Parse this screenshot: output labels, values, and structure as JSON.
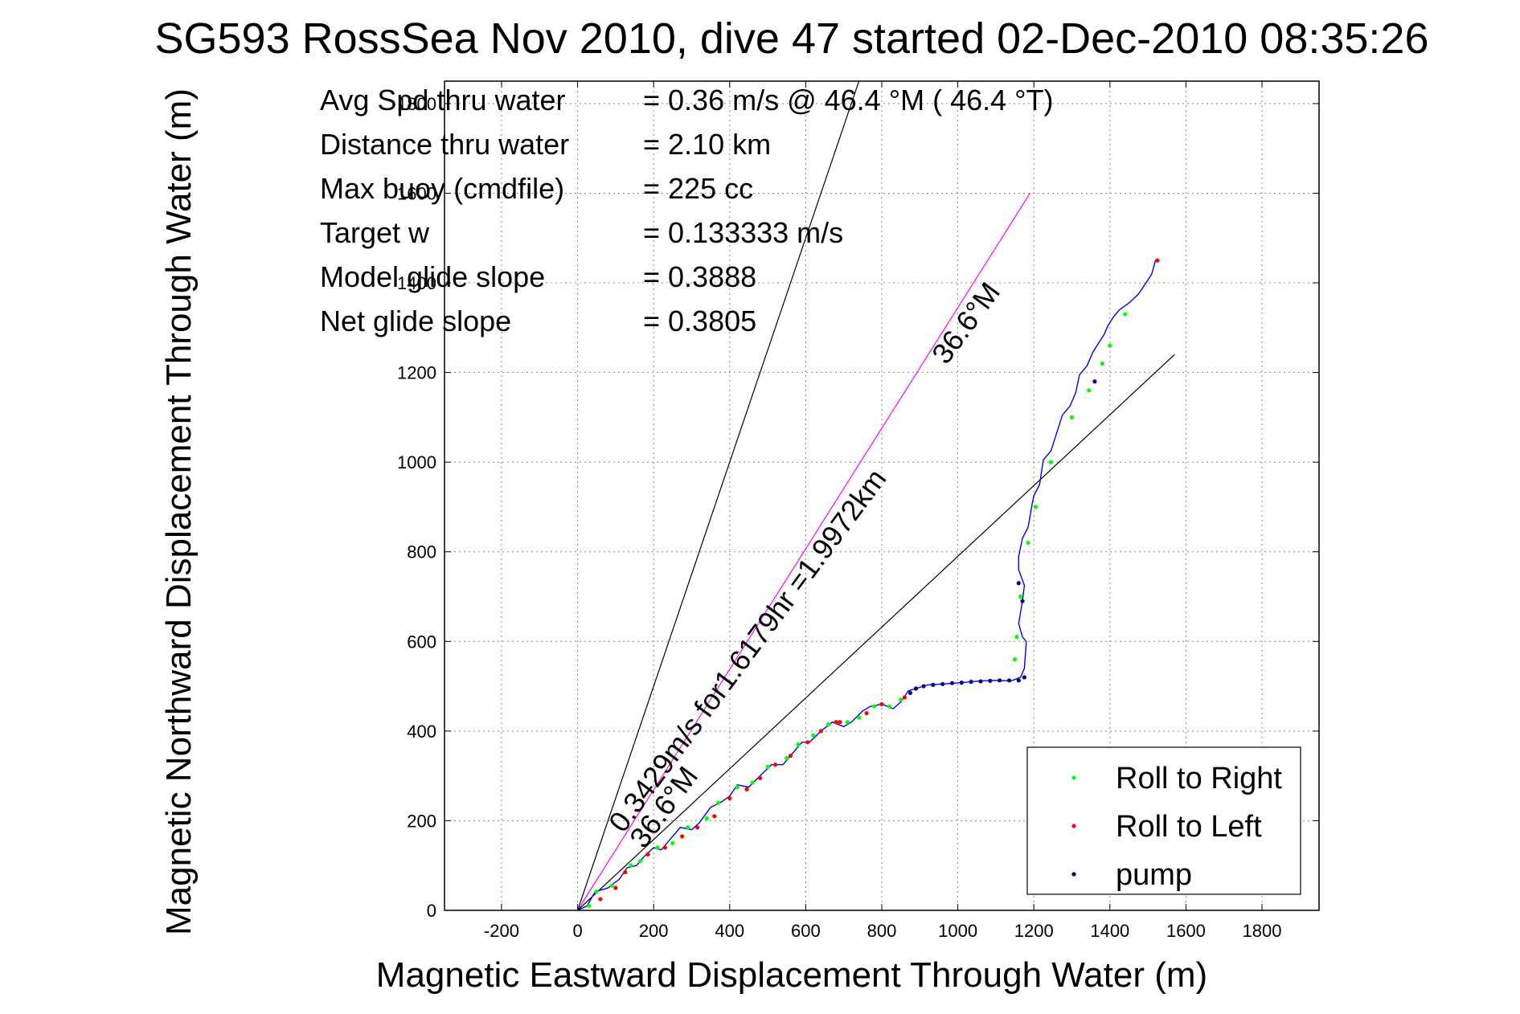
{
  "chart_data": {
    "type": "line",
    "title": "SG593 RossSea Nov 2010, dive 47 started 02-Dec-2010 08:35:26",
    "xlabel": "Magnetic Eastward Displacement Through Water (m)",
    "ylabel": "Magnetic Northward Displacement Through Water (m)",
    "xlim": [
      -350,
      1950
    ],
    "ylim": [
      0,
      1850
    ],
    "xticks": [
      -200,
      0,
      200,
      400,
      600,
      800,
      1000,
      1200,
      1400,
      1600,
      1800
    ],
    "yticks": [
      0,
      200,
      400,
      600,
      800,
      1000,
      1200,
      1400,
      1600,
      1800
    ],
    "grid": true,
    "stats": [
      {
        "label": "Avg Spd thru water",
        "value": "=  0.36 m/s @  46.4 °M ( 46.4 °T)"
      },
      {
        "label": "Distance thru water",
        "value": "=  2.10 km"
      },
      {
        "label": "Max buoy (cmdfile)",
        "value": "= 225 cc"
      },
      {
        "label": "Target w",
        "value": "= 0.133333 m/s"
      },
      {
        "label": "Model glide slope",
        "value": "= 0.3888"
      },
      {
        "label": "Net glide slope",
        "value": "= 0.3805"
      }
    ],
    "reference_lines": [
      {
        "name": "steep-line",
        "x": [
          0,
          740
        ],
        "y": [
          0,
          1850
        ],
        "color": "#000000"
      },
      {
        "name": "magenta-line",
        "x": [
          0,
          1190
        ],
        "y": [
          0,
          1600
        ],
        "color": "#ff00ff"
      },
      {
        "name": "shallow-line",
        "x": [
          0,
          1570
        ],
        "y": [
          0,
          1240
        ],
        "color": "#000000"
      }
    ],
    "annotations": [
      {
        "text": "0.3429m/s for1.6179hr =1.9972km",
        "x": 120,
        "y": 170,
        "angle": -53.4
      },
      {
        "text": "36.6°M",
        "x": 175,
        "y": 135,
        "angle": -53.4
      },
      {
        "text": "36.6°M",
        "x": 970,
        "y": 1215,
        "angle": -53.4
      }
    ],
    "track": {
      "color": "#0000ff",
      "x": [
        0,
        25,
        45,
        60,
        80,
        110,
        130,
        155,
        175,
        200,
        220,
        245,
        270,
        300,
        320,
        350,
        375,
        400,
        420,
        450,
        480,
        510,
        540,
        560,
        590,
        610,
        640,
        670,
        700,
        720,
        750,
        770,
        800,
        830,
        850,
        870,
        890,
        920,
        960,
        1010,
        1060,
        1100,
        1140,
        1165,
        1175,
        1180,
        1170,
        1160,
        1170,
        1175,
        1160,
        1160,
        1170,
        1185,
        1195,
        1200,
        1215,
        1225,
        1245,
        1260,
        1275,
        1295,
        1310,
        1320,
        1340,
        1355,
        1370,
        1385,
        1395,
        1410,
        1425,
        1450,
        1475,
        1495,
        1510,
        1520,
        1525
      ],
      "y": [
        0,
        10,
        40,
        45,
        50,
        70,
        95,
        100,
        120,
        140,
        135,
        160,
        185,
        180,
        195,
        230,
        240,
        255,
        280,
        275,
        300,
        325,
        325,
        345,
        375,
        375,
        400,
        420,
        410,
        420,
        445,
        455,
        460,
        450,
        465,
        490,
        495,
        503,
        505,
        508,
        512,
        513,
        512,
        520,
        540,
        600,
        610,
        640,
        690,
        725,
        760,
        790,
        830,
        855,
        905,
        925,
        950,
        1005,
        1025,
        1065,
        1105,
        1125,
        1155,
        1195,
        1215,
        1245,
        1265,
        1285,
        1305,
        1325,
        1340,
        1355,
        1375,
        1400,
        1420,
        1450,
        1450
      ]
    },
    "series": [
      {
        "name": "Roll to Right",
        "color": "#00ff00",
        "x": [
          30,
          50,
          90,
          140,
          165,
          210,
          250,
          290,
          340,
          370,
          420,
          460,
          500,
          550,
          580,
          620,
          660,
          710,
          740,
          780,
          820,
          850,
          1150,
          1155,
          1165,
          1185,
          1205,
          1245,
          1300,
          1345,
          1380,
          1400,
          1440
        ],
        "y": [
          10,
          42,
          55,
          100,
          110,
          140,
          150,
          185,
          205,
          240,
          275,
          285,
          320,
          340,
          370,
          390,
          415,
          420,
          430,
          455,
          455,
          470,
          560,
          610,
          700,
          820,
          900,
          1000,
          1100,
          1160,
          1220,
          1260,
          1330
        ]
      },
      {
        "name": "Roll to Left",
        "color": "#ff0000",
        "x": [
          60,
          100,
          125,
          185,
          230,
          275,
          315,
          360,
          400,
          445,
          480,
          520,
          560,
          605,
          640,
          680,
          690,
          760,
          800,
          860,
          1525
        ],
        "y": [
          25,
          50,
          85,
          125,
          140,
          165,
          185,
          210,
          250,
          270,
          295,
          325,
          345,
          375,
          400,
          420,
          420,
          440,
          460,
          475,
          1450
        ]
      },
      {
        "name": "pump",
        "color": "#000080",
        "x": [
          875,
          890,
          910,
          935,
          960,
          985,
          1010,
          1035,
          1060,
          1085,
          1110,
          1135,
          1160,
          1175,
          1170,
          1160,
          1360
        ],
        "y": [
          485,
          495,
          500,
          503,
          505,
          507,
          508,
          510,
          511,
          512,
          513,
          513,
          513,
          520,
          690,
          730,
          1180
        ]
      }
    ],
    "legend": {
      "position": "bottom-right",
      "entries": [
        "Roll to Right",
        "Roll to Left",
        "pump"
      ]
    }
  }
}
